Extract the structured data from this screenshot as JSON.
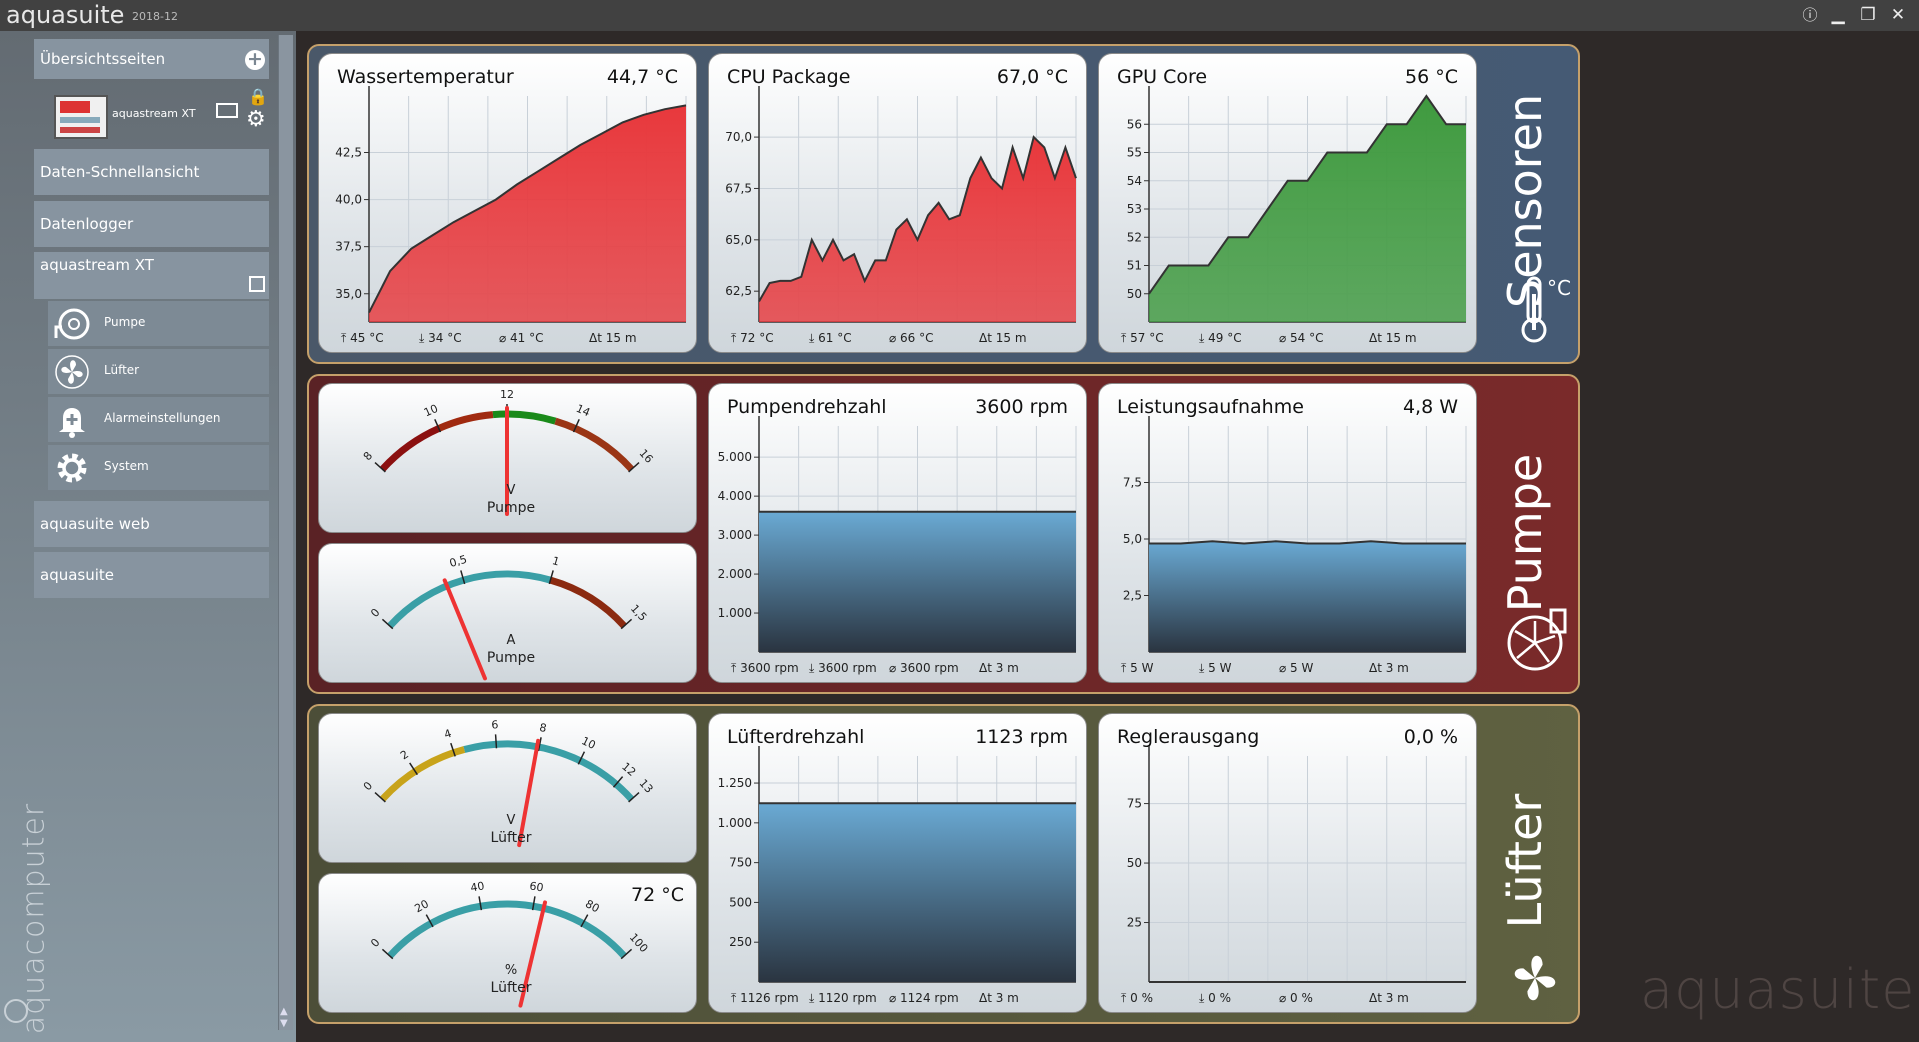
{
  "app": {
    "title": "aquasuite",
    "version": "2018-12",
    "brand_vertical": "aquacomputer",
    "watermark": "aquasuite"
  },
  "sidebar": {
    "overview": "Übersichtsseiten",
    "device": "aquastream XT",
    "quickview": "Daten-Schnellansicht",
    "logger": "Datenlogger",
    "device_section": "aquastream XT",
    "items": [
      {
        "label": "Pumpe"
      },
      {
        "label": "Lüfter"
      },
      {
        "label": "Alarmeinstellungen"
      },
      {
        "label": "System"
      }
    ],
    "web": "aquasuite web",
    "aquasuite": "aquasuite"
  },
  "groups": {
    "sensors": "Sensoren",
    "pump": "Pumpe",
    "fan": "Lüfter",
    "celsius": "°C"
  },
  "cards": {
    "water": {
      "title": "Wassertemperatur",
      "value": "44,7 °C",
      "stats": [
        "45 °C",
        "34 °C",
        "41 °C",
        "15 m"
      ]
    },
    "cpu": {
      "title": "CPU Package",
      "value": "67,0 °C",
      "stats": [
        "72 °C",
        "61 °C",
        "66 °C",
        "15 m"
      ]
    },
    "gpu": {
      "title": "GPU Core",
      "value": "56 °C",
      "stats": [
        "57 °C",
        "49 °C",
        "54 °C",
        "15 m"
      ]
    },
    "pump_rpm": {
      "title": "Pumpendrehzahl",
      "value": "3600 rpm",
      "stats": [
        "3600 rpm",
        "3600 rpm",
        "3600 rpm",
        "3 m"
      ]
    },
    "power": {
      "title": "Leistungsaufnahme",
      "value": "4,8 W",
      "stats": [
        "5 W",
        "5 W",
        "5 W",
        "3 m"
      ]
    },
    "fan_rpm": {
      "title": "Lüfterdrehzahl",
      "value": "1123 rpm",
      "stats": [
        "1126 rpm",
        "1120 rpm",
        "1124 rpm",
        "3 m"
      ]
    },
    "regler": {
      "title": "Reglerausgang",
      "value": "0,0 %",
      "stats": [
        "0 %",
        "0 %",
        "0 %",
        "3 m"
      ]
    }
  },
  "gauges": {
    "pump_v": {
      "unit": "V",
      "label": "Pumpe",
      "ticks": [
        "8",
        "10",
        "12",
        "14",
        "16"
      ],
      "min": 8,
      "max": 16,
      "value": 12
    },
    "pump_a": {
      "unit": "A",
      "label": "Pumpe",
      "ticks": [
        "0",
        "0,5",
        "1",
        "1,5"
      ],
      "min": 0,
      "max": 1.5,
      "value": 0.4
    },
    "fan_v": {
      "unit": "V",
      "label": "Lüfter",
      "ticks": [
        "0",
        "2",
        "4",
        "6",
        "8",
        "10",
        "12",
        "13"
      ],
      "min": 0,
      "max": 13,
      "value": 7.9
    },
    "fan_pct": {
      "unit": "%",
      "label": "Lüfter",
      "ticks": [
        "0",
        "20",
        "40",
        "60",
        "80",
        "100"
      ],
      "min": 0,
      "max": 100,
      "value": 64,
      "readout": "72 °C"
    }
  },
  "chart_data": [
    {
      "type": "area",
      "name": "Wassertemperatur",
      "ylim": [
        33.5,
        45.5
      ],
      "yticks": [
        "35,0",
        "37,5",
        "40,0",
        "42,5"
      ],
      "ytick_values": [
        35,
        37.5,
        40,
        42.5
      ],
      "color": "#e8383c",
      "x": [
        0,
        1,
        2,
        3,
        4,
        5,
        6,
        7,
        8,
        9,
        10,
        11,
        12,
        13,
        14,
        15
      ],
      "y": [
        34,
        36.2,
        37.4,
        38.1,
        38.8,
        39.4,
        40.0,
        40.8,
        41.5,
        42.2,
        42.9,
        43.5,
        44.1,
        44.5,
        44.8,
        45
      ]
    },
    {
      "type": "area",
      "name": "CPU Package",
      "ylim": [
        61,
        72
      ],
      "yticks": [
        "62,5",
        "65,0",
        "67,5",
        "70,0"
      ],
      "ytick_values": [
        62.5,
        65,
        67.5,
        70
      ],
      "color": "#e8383c",
      "x": [
        0,
        1,
        2,
        3,
        4,
        5,
        6,
        7,
        8,
        9,
        10,
        11,
        12,
        13,
        14,
        15,
        16,
        17,
        18,
        19,
        20,
        21,
        22,
        23,
        24,
        25,
        26,
        27,
        28,
        29,
        30
      ],
      "y": [
        62,
        62.9,
        63,
        63,
        63.2,
        65,
        64,
        65,
        64,
        64.3,
        63,
        64,
        64,
        65.5,
        66,
        65,
        66.2,
        66.8,
        66,
        66.2,
        68,
        69,
        68,
        67.5,
        69.5,
        68,
        70,
        69.5,
        68,
        69.5,
        68
      ]
    },
    {
      "type": "area",
      "name": "GPU Core",
      "ylim": [
        49,
        57
      ],
      "yticks": [
        "50",
        "51",
        "52",
        "53",
        "54",
        "55",
        "56"
      ],
      "ytick_values": [
        50,
        51,
        52,
        53,
        54,
        55,
        56
      ],
      "color": "#3f9a3f",
      "x": [
        0,
        1,
        2,
        3,
        4,
        5,
        6,
        7,
        8,
        9,
        10,
        11,
        12,
        13,
        14,
        15,
        16
      ],
      "y": [
        50,
        51,
        51,
        51,
        52,
        52,
        53,
        54,
        54,
        55,
        55,
        55,
        56,
        56,
        57,
        56,
        56
      ]
    },
    {
      "type": "area",
      "name": "Pumpendrehzahl",
      "ylim": [
        0,
        5800
      ],
      "yticks": [
        "1.000",
        "2.000",
        "3.000",
        "4.000",
        "5.000"
      ],
      "ytick_values": [
        1000,
        2000,
        3000,
        4000,
        5000
      ],
      "color": "#6aaad4",
      "x": [
        0,
        1
      ],
      "y": [
        3600,
        3600
      ]
    },
    {
      "type": "area",
      "name": "Leistungsaufnahme",
      "ylim": [
        0,
        10
      ],
      "yticks": [
        "2,5",
        "5,0",
        "7,5"
      ],
      "ytick_values": [
        2.5,
        5,
        7.5
      ],
      "color": "#6aaad4",
      "x": [
        0,
        1,
        2,
        3,
        4,
        5,
        6,
        7,
        8,
        9,
        10
      ],
      "y": [
        4.8,
        4.8,
        4.9,
        4.8,
        4.9,
        4.8,
        4.8,
        4.9,
        4.8,
        4.8,
        4.8
      ]
    },
    {
      "type": "area",
      "name": "Lüfterdrehzahl",
      "ylim": [
        0,
        1420
      ],
      "yticks": [
        "250",
        "500",
        "750",
        "1.000",
        "1.250"
      ],
      "ytick_values": [
        250,
        500,
        750,
        1000,
        1250
      ],
      "color": "#6aaad4",
      "x": [
        0,
        1
      ],
      "y": [
        1123,
        1123
      ]
    },
    {
      "type": "area",
      "name": "Reglerausgang",
      "ylim": [
        0,
        95
      ],
      "yticks": [
        "25",
        "50",
        "75"
      ],
      "ytick_values": [
        25,
        50,
        75
      ],
      "color": "#6aaad4",
      "x": [
        0,
        1
      ],
      "y": [
        0,
        0
      ]
    }
  ]
}
